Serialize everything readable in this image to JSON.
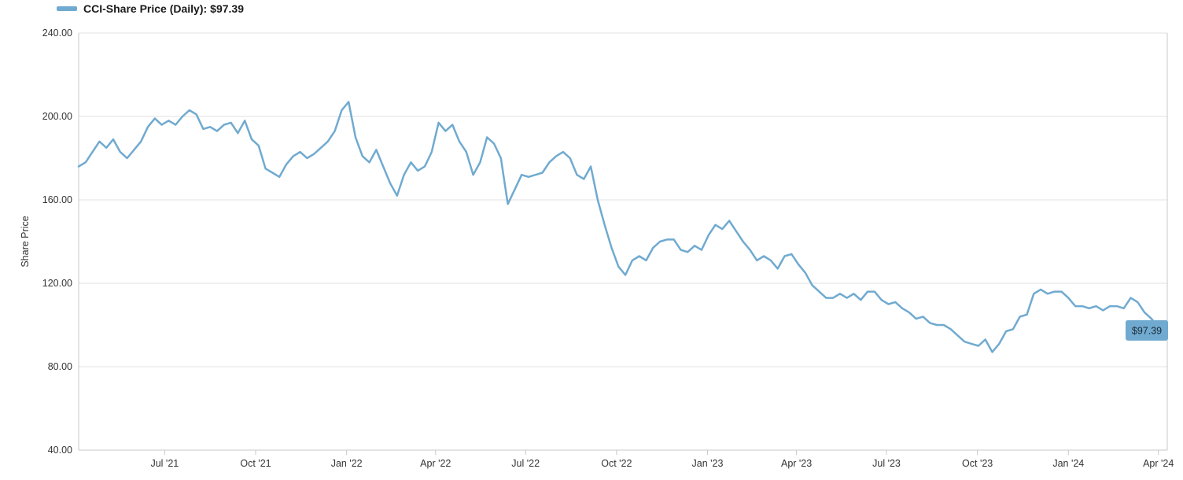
{
  "legend": {
    "label": "CCI-Share Price (Daily):",
    "value": "$97.39"
  },
  "colors": {
    "series": "#70aad0",
    "grid": "#e2e2e2",
    "axis": "#c8c8c8",
    "tag_bg": "#70aad0"
  },
  "chart_data": {
    "type": "line",
    "title": "",
    "xlabel": "",
    "ylabel": "Share Price",
    "ylim": [
      40,
      240
    ],
    "xlim": [
      "2021-04-05",
      "2024-04-10"
    ],
    "grid": true,
    "legend_position": "top-left",
    "y_ticks": [
      "240.00",
      "200.00",
      "160.00",
      "120.00",
      "80.00",
      "40.00"
    ],
    "y_tick_values": [
      240,
      200,
      160,
      120,
      80,
      40
    ],
    "x_ticks": [
      {
        "label": "Jul '21",
        "date": "2021-07-01"
      },
      {
        "label": "Oct '21",
        "date": "2021-10-01"
      },
      {
        "label": "Jan '22",
        "date": "2022-01-01"
      },
      {
        "label": "Apr '22",
        "date": "2022-04-01"
      },
      {
        "label": "Jul '22",
        "date": "2022-07-01"
      },
      {
        "label": "Oct '22",
        "date": "2022-10-01"
      },
      {
        "label": "Jan '23",
        "date": "2023-01-01"
      },
      {
        "label": "Apr '23",
        "date": "2023-04-01"
      },
      {
        "label": "Jul '23",
        "date": "2023-07-01"
      },
      {
        "label": "Oct '23",
        "date": "2023-10-01"
      },
      {
        "label": "Jan '24",
        "date": "2024-01-01"
      },
      {
        "label": "Apr '24",
        "date": "2024-04-01"
      }
    ],
    "series": [
      {
        "name": "CCI-Share Price (Daily)",
        "last_value_label": "$97.39",
        "points": [
          [
            "2021-04-05",
            176
          ],
          [
            "2021-04-12",
            178
          ],
          [
            "2021-04-19",
            183
          ],
          [
            "2021-04-26",
            188
          ],
          [
            "2021-05-03",
            185
          ],
          [
            "2021-05-10",
            189
          ],
          [
            "2021-05-17",
            183
          ],
          [
            "2021-05-24",
            180
          ],
          [
            "2021-05-31",
            184
          ],
          [
            "2021-06-07",
            188
          ],
          [
            "2021-06-14",
            195
          ],
          [
            "2021-06-21",
            199
          ],
          [
            "2021-06-28",
            196
          ],
          [
            "2021-07-05",
            198
          ],
          [
            "2021-07-12",
            196
          ],
          [
            "2021-07-19",
            200
          ],
          [
            "2021-07-26",
            203
          ],
          [
            "2021-08-02",
            201
          ],
          [
            "2021-08-09",
            194
          ],
          [
            "2021-08-16",
            195
          ],
          [
            "2021-08-23",
            193
          ],
          [
            "2021-08-30",
            196
          ],
          [
            "2021-09-06",
            197
          ],
          [
            "2021-09-13",
            192
          ],
          [
            "2021-09-20",
            198
          ],
          [
            "2021-09-27",
            189
          ],
          [
            "2021-10-04",
            186
          ],
          [
            "2021-10-11",
            175
          ],
          [
            "2021-10-18",
            173
          ],
          [
            "2021-10-25",
            171
          ],
          [
            "2021-11-01",
            177
          ],
          [
            "2021-11-08",
            181
          ],
          [
            "2021-11-15",
            183
          ],
          [
            "2021-11-22",
            180
          ],
          [
            "2021-11-29",
            182
          ],
          [
            "2021-12-06",
            185
          ],
          [
            "2021-12-13",
            188
          ],
          [
            "2021-12-20",
            193
          ],
          [
            "2021-12-27",
            203
          ],
          [
            "2022-01-03",
            207
          ],
          [
            "2022-01-10",
            190
          ],
          [
            "2022-01-17",
            181
          ],
          [
            "2022-01-24",
            178
          ],
          [
            "2022-01-31",
            184
          ],
          [
            "2022-02-07",
            176
          ],
          [
            "2022-02-14",
            168
          ],
          [
            "2022-02-21",
            162
          ],
          [
            "2022-02-28",
            172
          ],
          [
            "2022-03-07",
            178
          ],
          [
            "2022-03-14",
            174
          ],
          [
            "2022-03-21",
            176
          ],
          [
            "2022-03-28",
            183
          ],
          [
            "2022-04-04",
            197
          ],
          [
            "2022-04-11",
            193
          ],
          [
            "2022-04-18",
            196
          ],
          [
            "2022-04-25",
            188
          ],
          [
            "2022-05-02",
            183
          ],
          [
            "2022-05-09",
            172
          ],
          [
            "2022-05-16",
            178
          ],
          [
            "2022-05-23",
            190
          ],
          [
            "2022-05-30",
            187
          ],
          [
            "2022-06-06",
            180
          ],
          [
            "2022-06-13",
            158
          ],
          [
            "2022-06-20",
            165
          ],
          [
            "2022-06-27",
            172
          ],
          [
            "2022-07-04",
            171
          ],
          [
            "2022-07-11",
            172
          ],
          [
            "2022-07-18",
            173
          ],
          [
            "2022-07-25",
            178
          ],
          [
            "2022-08-01",
            181
          ],
          [
            "2022-08-08",
            183
          ],
          [
            "2022-08-15",
            180
          ],
          [
            "2022-08-22",
            172
          ],
          [
            "2022-08-29",
            170
          ],
          [
            "2022-09-05",
            176
          ],
          [
            "2022-09-12",
            160
          ],
          [
            "2022-09-19",
            148
          ],
          [
            "2022-09-26",
            137
          ],
          [
            "2022-10-03",
            128
          ],
          [
            "2022-10-10",
            124
          ],
          [
            "2022-10-17",
            131
          ],
          [
            "2022-10-24",
            133
          ],
          [
            "2022-10-31",
            131
          ],
          [
            "2022-11-07",
            137
          ],
          [
            "2022-11-14",
            140
          ],
          [
            "2022-11-21",
            141
          ],
          [
            "2022-11-28",
            141
          ],
          [
            "2022-12-05",
            136
          ],
          [
            "2022-12-12",
            135
          ],
          [
            "2022-12-19",
            138
          ],
          [
            "2022-12-26",
            136
          ],
          [
            "2023-01-02",
            143
          ],
          [
            "2023-01-09",
            148
          ],
          [
            "2023-01-16",
            146
          ],
          [
            "2023-01-23",
            150
          ],
          [
            "2023-01-30",
            145
          ],
          [
            "2023-02-06",
            140
          ],
          [
            "2023-02-13",
            136
          ],
          [
            "2023-02-20",
            131
          ],
          [
            "2023-02-27",
            133
          ],
          [
            "2023-03-06",
            131
          ],
          [
            "2023-03-13",
            127
          ],
          [
            "2023-03-20",
            133
          ],
          [
            "2023-03-27",
            134
          ],
          [
            "2023-04-03",
            129
          ],
          [
            "2023-04-10",
            125
          ],
          [
            "2023-04-17",
            119
          ],
          [
            "2023-04-24",
            116
          ],
          [
            "2023-05-01",
            113
          ],
          [
            "2023-05-08",
            113
          ],
          [
            "2023-05-15",
            115
          ],
          [
            "2023-05-22",
            113
          ],
          [
            "2023-05-29",
            115
          ],
          [
            "2023-06-05",
            112
          ],
          [
            "2023-06-12",
            116
          ],
          [
            "2023-06-19",
            116
          ],
          [
            "2023-06-26",
            112
          ],
          [
            "2023-07-03",
            110
          ],
          [
            "2023-07-10",
            111
          ],
          [
            "2023-07-17",
            108
          ],
          [
            "2023-07-24",
            106
          ],
          [
            "2023-07-31",
            103
          ],
          [
            "2023-08-07",
            104
          ],
          [
            "2023-08-14",
            101
          ],
          [
            "2023-08-21",
            100
          ],
          [
            "2023-08-28",
            100
          ],
          [
            "2023-09-04",
            98
          ],
          [
            "2023-09-11",
            95
          ],
          [
            "2023-09-18",
            92
          ],
          [
            "2023-09-25",
            91
          ],
          [
            "2023-10-02",
            90
          ],
          [
            "2023-10-09",
            93
          ],
          [
            "2023-10-16",
            87
          ],
          [
            "2023-10-23",
            91
          ],
          [
            "2023-10-30",
            97
          ],
          [
            "2023-11-06",
            98
          ],
          [
            "2023-11-13",
            104
          ],
          [
            "2023-11-20",
            105
          ],
          [
            "2023-11-27",
            115
          ],
          [
            "2023-12-04",
            117
          ],
          [
            "2023-12-11",
            115
          ],
          [
            "2023-12-18",
            116
          ],
          [
            "2023-12-25",
            116
          ],
          [
            "2024-01-01",
            113
          ],
          [
            "2024-01-08",
            109
          ],
          [
            "2024-01-15",
            109
          ],
          [
            "2024-01-22",
            108
          ],
          [
            "2024-01-29",
            109
          ],
          [
            "2024-02-05",
            107
          ],
          [
            "2024-02-12",
            109
          ],
          [
            "2024-02-19",
            109
          ],
          [
            "2024-02-26",
            108
          ],
          [
            "2024-03-04",
            113
          ],
          [
            "2024-03-11",
            111
          ],
          [
            "2024-03-18",
            106
          ],
          [
            "2024-03-25",
            103
          ],
          [
            "2024-04-01",
            99
          ],
          [
            "2024-04-08",
            97.39
          ]
        ]
      }
    ]
  }
}
